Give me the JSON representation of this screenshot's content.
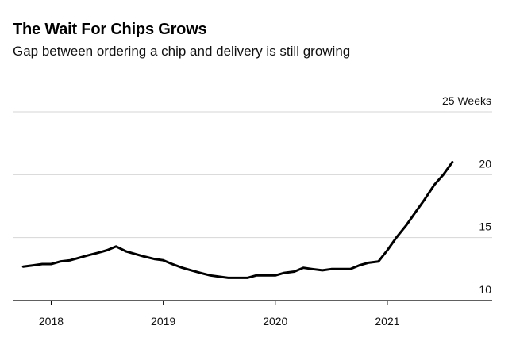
{
  "header": {
    "title": "The Wait For Chips Grows",
    "subtitle": "Gap between ordering a chip and delivery is still growing"
  },
  "chart_data": {
    "type": "line",
    "title": "The Wait For Chips Grows",
    "subtitle": "Gap between ordering a chip and delivery is still growing",
    "y_unit_label": "25 Weeks",
    "ylim": [
      10,
      25
    ],
    "y_ticks": [
      {
        "value": 25,
        "label": "25 Weeks"
      },
      {
        "value": 20,
        "label": "20"
      },
      {
        "value": 15,
        "label": "15"
      },
      {
        "value": 10,
        "label": "10"
      }
    ],
    "x_ticks": [
      {
        "value": 2018,
        "label": "2018"
      },
      {
        "value": 2019,
        "label": "2019"
      },
      {
        "value": 2020,
        "label": "2020"
      },
      {
        "value": 2021,
        "label": "2021"
      }
    ],
    "xlim": [
      2017.6,
      2021.9
    ],
    "grid": "horizontal",
    "line_color": "#000000",
    "series": [
      {
        "x": [
          2017.75,
          2017.84,
          2017.92,
          2018.0,
          2018.08,
          2018.17,
          2018.25,
          2018.33,
          2018.42,
          2018.5,
          2018.58,
          2018.67,
          2018.75,
          2018.83,
          2018.92,
          2019.0,
          2019.08,
          2019.17,
          2019.25,
          2019.33,
          2019.42,
          2019.5,
          2019.58,
          2019.67,
          2019.75,
          2019.83,
          2019.92,
          2020.0,
          2020.08,
          2020.17,
          2020.25,
          2020.33,
          2020.42,
          2020.5,
          2020.58,
          2020.67,
          2020.75,
          2020.83,
          2020.92,
          2021.0,
          2021.08,
          2021.17,
          2021.25,
          2021.33,
          2021.42,
          2021.5,
          2021.58
        ],
        "values": [
          12.7,
          12.8,
          12.9,
          12.9,
          13.1,
          13.2,
          13.4,
          13.6,
          13.8,
          14.0,
          14.3,
          13.9,
          13.7,
          13.5,
          13.3,
          13.2,
          12.9,
          12.6,
          12.4,
          12.2,
          12.0,
          11.9,
          11.8,
          11.8,
          11.8,
          12.0,
          12.0,
          12.0,
          12.2,
          12.3,
          12.6,
          12.5,
          12.4,
          12.5,
          12.5,
          12.5,
          12.8,
          13.0,
          13.1,
          14.0,
          15.0,
          16.0,
          17.0,
          18.0,
          19.2,
          20.0,
          21.0
        ]
      }
    ]
  }
}
